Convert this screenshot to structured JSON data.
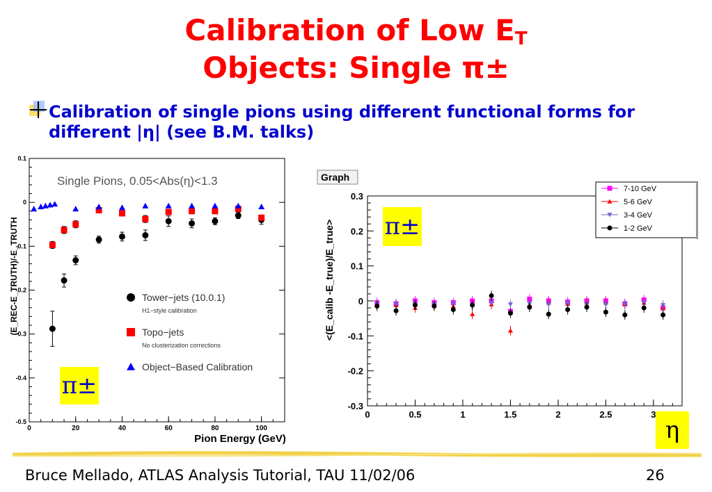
{
  "slide": {
    "title_line1": "Calibration of Low E",
    "title_sub": "T",
    "title_line2": "Objects: Single π±",
    "bullet": "Calibration of single pions using different functional forms for different |η| (see B.M. talks)",
    "footer_left": "Bruce Mellado, ATLAS Analysis Tutorial, TAU 11/02/06",
    "page_number": "26",
    "badge_pi_left": "π±",
    "badge_pi_right": "π±",
    "badge_eta": "η",
    "colors": {
      "title": "#ff0000",
      "bullet": "#0000cc",
      "badge": "#ffff00"
    }
  },
  "chart_data": [
    {
      "type": "scatter",
      "title": "Single Pions, 0.05<Abs(η)<1.3",
      "xlabel": "Pion Energy (GeV)",
      "ylabel": "(E_REC-E_TRUTH)/-E_TRUTH",
      "xlim": [
        0,
        110
      ],
      "ylim": [
        -0.5,
        0.1
      ],
      "xticks": [
        "0",
        "20",
        "40",
        "60",
        "80",
        "100"
      ],
      "yticks": [
        "0.1",
        "0",
        "-0.1",
        "-0.2",
        "-0.3",
        "-0.4",
        "-0.5"
      ],
      "legend_position": "bottom-right",
      "series": [
        {
          "name": "Tower−jets (10.0.1)",
          "note": "H1−style calibration",
          "marker": "circle",
          "color": "#000000",
          "x": [
            10,
            15,
            20,
            30,
            40,
            50,
            60,
            70,
            80,
            90,
            100
          ],
          "y": [
            -0.288,
            -0.178,
            -0.132,
            -0.085,
            -0.078,
            -0.075,
            -0.043,
            -0.048,
            -0.043,
            -0.03,
            -0.04
          ],
          "err": [
            0.04,
            0.015,
            0.01,
            0.008,
            0.01,
            0.012,
            0.012,
            0.01,
            0.008,
            0.007,
            0.01
          ]
        },
        {
          "name": "Topo−jets",
          "note": "No clusterization corrections",
          "marker": "square",
          "color": "#ff0000",
          "x": [
            10,
            15,
            20,
            30,
            40,
            50,
            60,
            70,
            80,
            90,
            100
          ],
          "y": [
            -0.097,
            -0.063,
            -0.05,
            -0.018,
            -0.025,
            -0.038,
            -0.022,
            -0.02,
            -0.02,
            -0.015,
            -0.035
          ],
          "err": [
            0.008,
            0.008,
            0.008,
            0.006,
            0.006,
            0.008,
            0.006,
            0.006,
            0.006,
            0.005,
            0.006
          ]
        },
        {
          "name": "Object−Based Calibration",
          "marker": "triangle",
          "color": "#0000ff",
          "x": [
            2,
            5,
            7,
            9,
            11,
            20,
            30,
            40,
            50,
            60,
            70,
            80,
            90,
            100
          ],
          "y": [
            -0.015,
            -0.01,
            -0.008,
            -0.006,
            -0.004,
            -0.015,
            -0.01,
            -0.012,
            -0.008,
            -0.008,
            -0.008,
            -0.008,
            -0.008,
            -0.01
          ],
          "err": [
            0,
            0,
            0,
            0,
            0,
            0,
            0,
            0,
            0,
            0,
            0,
            0,
            0,
            0
          ]
        }
      ]
    },
    {
      "type": "scatter",
      "title": "Graph",
      "xlabel": "",
      "ylabel": "<(E_calib -E_true)/E_true>",
      "xlim": [
        0,
        3.3
      ],
      "ylim": [
        -0.3,
        0.3
      ],
      "xticks": [
        "0",
        "0.5",
        "1",
        "1.5",
        "2",
        "2.5",
        "3"
      ],
      "yticks": [
        "0.3",
        "0.2",
        "0.1",
        "0",
        "-0.1",
        "-0.2",
        "-0.3"
      ],
      "legend_position": "top-right",
      "series": [
        {
          "name": "7-10 GeV",
          "marker": "square",
          "color": "#ff00ff",
          "x": [
            0.1,
            0.3,
            0.5,
            0.7,
            0.9,
            1.1,
            1.3,
            1.5,
            1.7,
            1.9,
            2.1,
            2.3,
            2.5,
            2.7,
            2.9,
            3.1
          ],
          "y": [
            -0.005,
            -0.008,
            0.0,
            -0.005,
            -0.005,
            0.0,
            0.0,
            -0.03,
            0.005,
            0.0,
            -0.003,
            0.0,
            0.0,
            -0.008,
            0.003,
            -0.02
          ]
        },
        {
          "name": "5-6 GeV",
          "marker": "triangle",
          "color": "#ff0000",
          "x": [
            0.1,
            0.3,
            0.5,
            0.7,
            0.9,
            1.1,
            1.3,
            1.5,
            1.7,
            1.9,
            2.1,
            2.3,
            2.5,
            2.7,
            2.9,
            3.1
          ],
          "y": [
            -0.01,
            -0.012,
            -0.02,
            -0.012,
            -0.015,
            -0.038,
            -0.01,
            -0.085,
            -0.01,
            -0.005,
            -0.008,
            -0.005,
            -0.005,
            -0.01,
            -0.005,
            -0.02
          ]
        },
        {
          "name": "3-4  GeV",
          "marker": "triangle-down",
          "color": "#6666cc",
          "x": [
            0.1,
            0.3,
            0.5,
            0.7,
            0.9,
            1.1,
            1.3,
            1.5,
            1.7,
            1.9,
            2.1,
            2.3,
            2.5,
            2.7,
            2.9,
            3.1
          ],
          "y": [
            -0.008,
            -0.01,
            -0.008,
            -0.01,
            -0.01,
            -0.015,
            -0.005,
            -0.01,
            -0.008,
            -0.01,
            -0.008,
            -0.01,
            -0.01,
            -0.01,
            -0.005,
            -0.012
          ]
        },
        {
          "name": "1-2  GeV",
          "marker": "circle",
          "color": "#000000",
          "x": [
            0.1,
            0.3,
            0.5,
            0.7,
            0.9,
            1.1,
            1.3,
            1.5,
            1.7,
            1.9,
            2.1,
            2.3,
            2.5,
            2.7,
            2.9,
            3.1
          ],
          "y": [
            -0.015,
            -0.028,
            -0.012,
            -0.015,
            -0.025,
            -0.012,
            0.015,
            -0.035,
            -0.018,
            -0.038,
            -0.025,
            -0.018,
            -0.032,
            -0.04,
            -0.02,
            -0.04
          ]
        }
      ]
    }
  ]
}
